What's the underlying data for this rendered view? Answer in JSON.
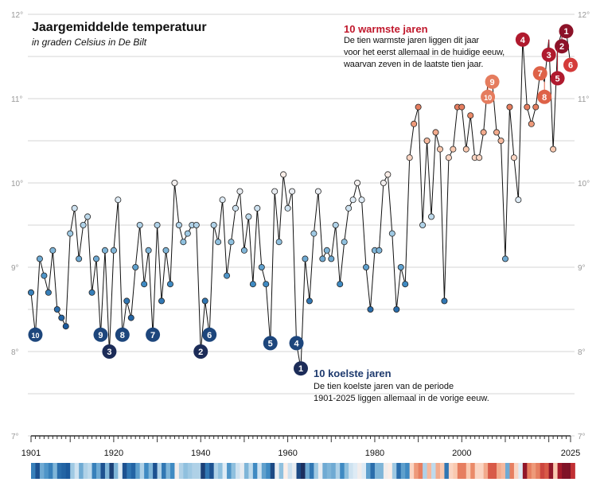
{
  "chart_data": {
    "type": "line",
    "title": "Jaargemiddelde temperatuur",
    "subtitle": "in graden Celsius in De Bilt",
    "ylim": [
      7,
      12
    ],
    "yticks": [
      "7°",
      "8°",
      "9°",
      "10°",
      "11°",
      "12°"
    ],
    "xlim": [
      1901,
      2025
    ],
    "xtick_labels": [
      "1901",
      "1920",
      "1940",
      "1960",
      "1980",
      "2000",
      "2025"
    ],
    "grid": true,
    "x": [
      1901,
      1902,
      1903,
      1904,
      1905,
      1906,
      1907,
      1908,
      1909,
      1910,
      1911,
      1912,
      1913,
      1914,
      1915,
      1916,
      1917,
      1918,
      1919,
      1920,
      1921,
      1922,
      1923,
      1924,
      1925,
      1926,
      1927,
      1928,
      1929,
      1930,
      1931,
      1932,
      1933,
      1934,
      1935,
      1936,
      1937,
      1938,
      1939,
      1940,
      1941,
      1942,
      1943,
      1944,
      1945,
      1946,
      1947,
      1948,
      1949,
      1950,
      1951,
      1952,
      1953,
      1954,
      1955,
      1956,
      1957,
      1958,
      1959,
      1960,
      1961,
      1962,
      1963,
      1964,
      1965,
      1966,
      1967,
      1968,
      1969,
      1970,
      1971,
      1972,
      1973,
      1974,
      1975,
      1976,
      1977,
      1978,
      1979,
      1980,
      1981,
      1982,
      1983,
      1984,
      1985,
      1986,
      1987,
      1988,
      1989,
      1990,
      1991,
      1992,
      1993,
      1994,
      1995,
      1996,
      1997,
      1998,
      1999,
      2000,
      2001,
      2002,
      2003,
      2004,
      2005,
      2006,
      2007,
      2008,
      2009,
      2010,
      2011,
      2012,
      2013,
      2014,
      2015,
      2016,
      2017,
      2018,
      2019,
      2020,
      2021,
      2022,
      2023,
      2024,
      2025
    ],
    "values": [
      8.7,
      8.2,
      9.1,
      8.9,
      8.7,
      9.2,
      8.5,
      8.4,
      8.3,
      9.4,
      9.7,
      9.1,
      9.5,
      9.6,
      8.7,
      9.1,
      8.2,
      9.2,
      8.0,
      9.2,
      9.8,
      8.2,
      8.6,
      8.4,
      9.0,
      9.5,
      8.8,
      9.2,
      8.2,
      9.5,
      8.6,
      9.2,
      8.8,
      10.0,
      9.5,
      9.3,
      9.4,
      9.5,
      9.5,
      8.0,
      8.6,
      8.2,
      9.5,
      9.3,
      9.8,
      8.9,
      9.3,
      9.7,
      9.9,
      9.2,
      9.6,
      8.8,
      9.7,
      9.0,
      8.8,
      8.1,
      9.9,
      9.3,
      10.1,
      9.7,
      9.9,
      8.1,
      7.8,
      9.1,
      8.6,
      9.4,
      9.9,
      9.1,
      9.2,
      9.1,
      9.5,
      8.8,
      9.3,
      9.7,
      9.8,
      10.0,
      9.8,
      9.0,
      8.5,
      9.2,
      9.2,
      10.0,
      10.1,
      9.4,
      8.5,
      9.0,
      8.8,
      10.3,
      10.7,
      10.9,
      9.5,
      10.5,
      9.6,
      10.6,
      10.4,
      8.6,
      10.3,
      10.4,
      10.9,
      10.9,
      10.4,
      10.8,
      10.3,
      10.3,
      10.6,
      11.2,
      11.2,
      10.6,
      10.5,
      9.1,
      10.9,
      10.3,
      9.8,
      11.7,
      10.9,
      10.7,
      10.9,
      11.3,
      11.2,
      11.7,
      10.4,
      11.6,
      11.8,
      11.8,
      11.4
    ],
    "warmest_ranks": [
      {
        "year": 2024,
        "rank": "1"
      },
      {
        "year": 2023,
        "rank": "2"
      },
      {
        "year": 2020,
        "rank": "3"
      },
      {
        "year": 2014,
        "rank": "4"
      },
      {
        "year": 2022,
        "rank": "5"
      },
      {
        "year": 2025,
        "rank": "6"
      },
      {
        "year": 2018,
        "rank": "7"
      },
      {
        "year": 2019,
        "rank": "8"
      },
      {
        "year": 2007,
        "rank": "9"
      },
      {
        "year": 2006,
        "rank": "10"
      }
    ],
    "coolest_ranks": [
      {
        "year": 1963,
        "rank": "1"
      },
      {
        "year": 1940,
        "rank": "2"
      },
      {
        "year": 1919,
        "rank": "3"
      },
      {
        "year": 1962,
        "rank": "4"
      },
      {
        "year": 1956,
        "rank": "5"
      },
      {
        "year": 1942,
        "rank": "6"
      },
      {
        "year": 1929,
        "rank": "7"
      },
      {
        "year": 1922,
        "rank": "8"
      },
      {
        "year": 1917,
        "rank": "9"
      },
      {
        "year": 1902,
        "rank": "10"
      }
    ],
    "colors": {
      "warm_heading": "#c0182c",
      "cool_heading": "#1e3a6e",
      "line": "#111111",
      "grid": "#d4d4d4"
    }
  },
  "annotations": {
    "warm": {
      "heading": "10 warmste jaren",
      "lines": [
        "De tien warmste jaren liggen dit jaar",
        "voor het eerst allemaal in de huidige eeuw,",
        "waarvan zeven in de laatste tien jaar."
      ]
    },
    "cool": {
      "heading": "10 koelste jaren",
      "lines": [
        "De tien koelste jaren van de periode",
        "1901-2025 liggen allemaal in de vorige eeuw."
      ]
    }
  }
}
